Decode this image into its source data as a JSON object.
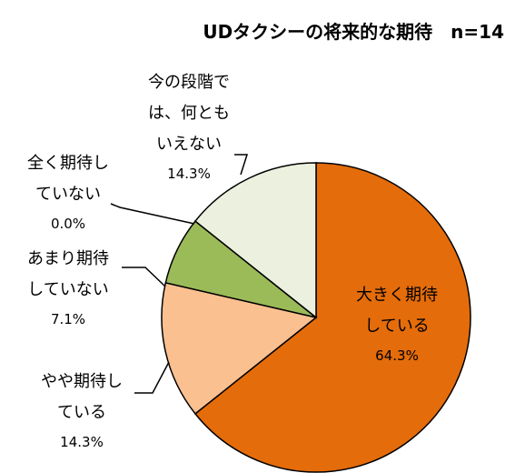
{
  "chart_data": {
    "type": "pie",
    "title": "UDタクシーの将来的な期待　n=14",
    "categories": [
      "大きく期待\nしている",
      "やや期待し\nている",
      "あまり期待\nしていない",
      "全く期待し\nていない",
      "今の段階で\nは、何とも\nいえない"
    ],
    "values": [
      64.3,
      14.3,
      7.1,
      0.0,
      14.3
    ],
    "value_labels": [
      "64.3%",
      "14.3%",
      "7.1%",
      "0.0%",
      "14.3%"
    ],
    "colors": [
      "#e46c0a",
      "#fac090",
      "#9bbb59",
      "#ffffff",
      "#ebf1de"
    ]
  }
}
